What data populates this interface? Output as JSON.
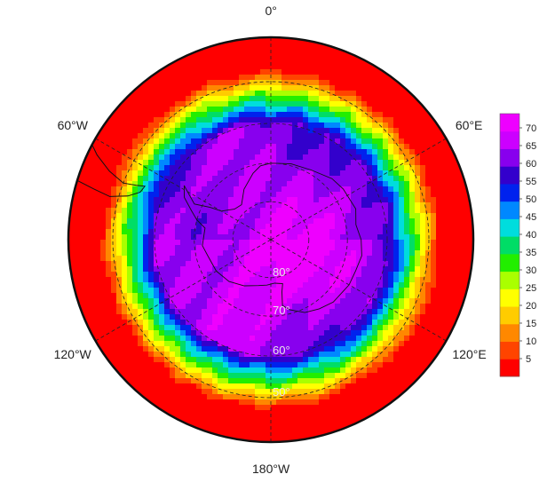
{
  "map": {
    "projection": "south-polar-stereographic",
    "field_range": [
      0,
      74
    ],
    "longitude_labels": [
      {
        "lon": 0,
        "text": "0°"
      },
      {
        "lon": 60,
        "text": "60°E"
      },
      {
        "lon": 120,
        "text": "120°E"
      },
      {
        "lon": 180,
        "text": "180°W"
      },
      {
        "lon": -120,
        "text": "120°W"
      },
      {
        "lon": -60,
        "text": "60°W"
      }
    ],
    "latitude_labels": [
      {
        "lat": -80,
        "text": "80°"
      },
      {
        "lat": -70,
        "text": "70°"
      },
      {
        "lat": -60,
        "text": "60°"
      },
      {
        "lat": -50,
        "text": "50°"
      }
    ],
    "boundary_latitude": -40,
    "gridline_style": "dashed"
  },
  "colorbar": {
    "ticks": [
      5,
      10,
      15,
      20,
      25,
      30,
      35,
      40,
      45,
      50,
      55,
      60,
      65,
      70
    ],
    "range": [
      0,
      74
    ],
    "colors": [
      "#ff0000",
      "#ff4400",
      "#ff8800",
      "#ffcc00",
      "#ffff00",
      "#aaff00",
      "#22ee00",
      "#00dd66",
      "#00dddd",
      "#0088ff",
      "#0022ee",
      "#3300cc",
      "#8800ee",
      "#cc00ff",
      "#ee00ff"
    ]
  }
}
